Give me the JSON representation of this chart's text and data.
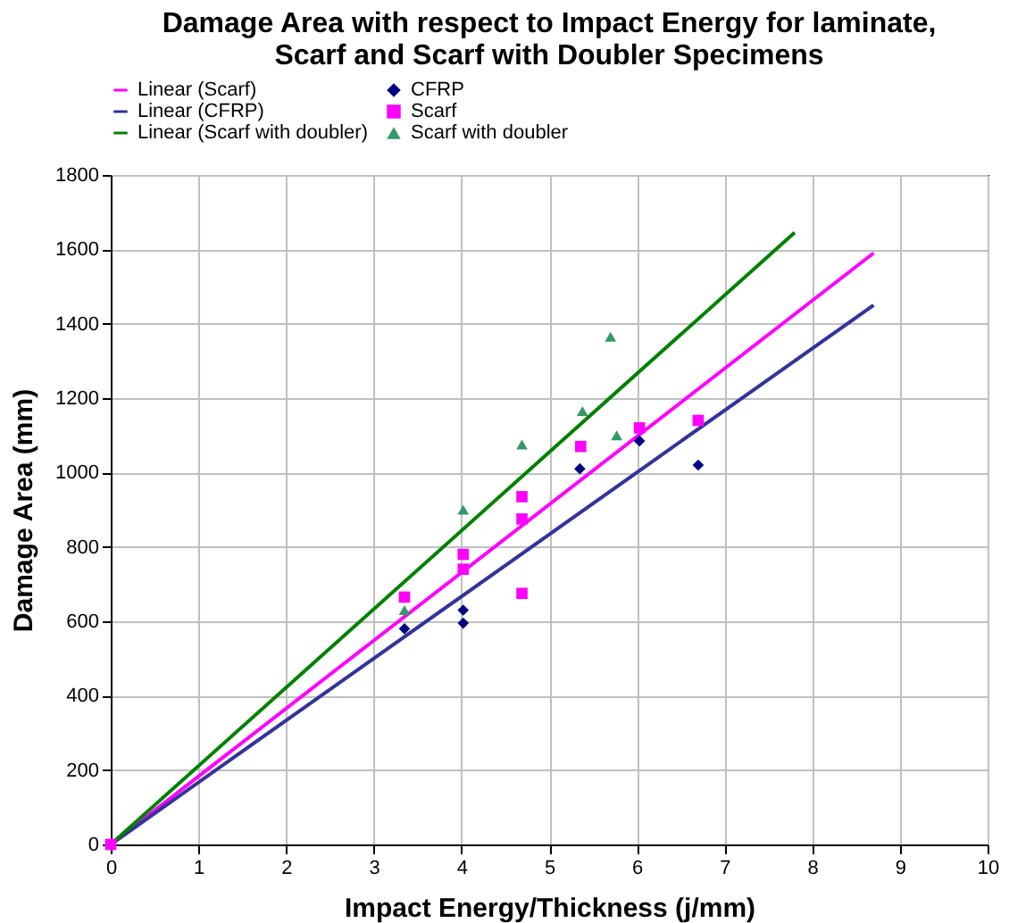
{
  "chart_data": {
    "type": "scatter",
    "title": "Damage Area with respect to Impact Energy for laminate, Scarf and Scarf with Doubler Specimens",
    "xlabel": "Impact Energy/Thickness (j/mm)",
    "ylabel": "Damage Area (mm)",
    "xlim": [
      0,
      10
    ],
    "xticks": [
      0,
      1,
      2,
      3,
      4,
      5,
      6,
      7,
      8,
      9,
      10
    ],
    "ylim": [
      0,
      1800
    ],
    "yticks": [
      0,
      200,
      400,
      600,
      800,
      1000,
      1200,
      1400,
      1600,
      1800
    ],
    "grid": true,
    "legend": "top",
    "series": [
      {
        "name": "CFRP",
        "marker": "diamond",
        "color": "#000080",
        "x": [
          3.35,
          4.02,
          4.02,
          5.35,
          6.03,
          6.7
        ],
        "values": [
          580,
          630,
          595,
          1010,
          1085,
          1020
        ]
      },
      {
        "name": "Scarf",
        "marker": "square",
        "color": "#ff00ff",
        "x": [
          0,
          3.35,
          4.02,
          4.02,
          4.69,
          4.69,
          4.69,
          5.36,
          6.03,
          6.7
        ],
        "values": [
          0,
          665,
          780,
          740,
          935,
          875,
          675,
          1070,
          1120,
          1140
        ]
      },
      {
        "name": "Scarf with doubler",
        "marker": "triangle",
        "color": "#339966",
        "x": [
          3.35,
          4.02,
          4.69,
          5.38,
          5.7,
          5.77
        ],
        "values": [
          630,
          900,
          1075,
          1165,
          1365,
          1100
        ]
      },
      {
        "name": "Linear (Scarf)",
        "type": "line",
        "color": "#ff00ff",
        "x": [
          0,
          8.7
        ],
        "values": [
          0,
          1590
        ]
      },
      {
        "name": "Linear (CFRP)",
        "type": "line",
        "color": "#333399",
        "x": [
          0,
          8.7
        ],
        "values": [
          0,
          1450
        ]
      },
      {
        "name": "Linear (Scarf with doubler)",
        "type": "line",
        "color": "#008000",
        "x": [
          0,
          7.8
        ],
        "values": [
          0,
          1645
        ]
      }
    ]
  }
}
